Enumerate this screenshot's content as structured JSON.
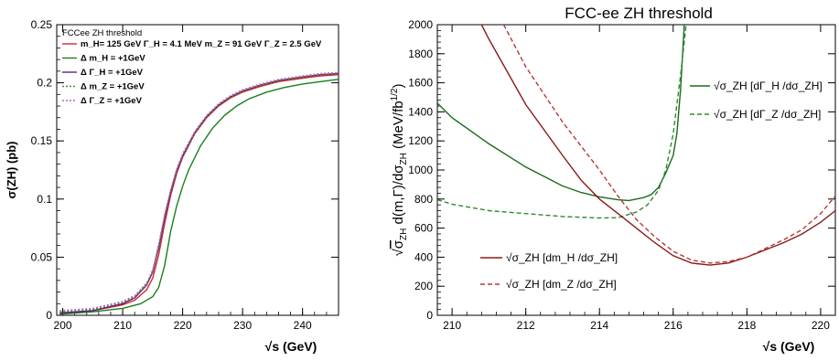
{
  "chart_data": [
    {
      "type": "line",
      "title": "",
      "legend_title": "FCCee ZH threshold",
      "xlabel": "√s (GeV)",
      "ylabel": "σ(ZH) (pb)",
      "xlim": [
        199,
        246
      ],
      "ylim": [
        0,
        0.25
      ],
      "x_ticks": [
        "200",
        "210",
        "220",
        "230",
        "240"
      ],
      "y_ticks": [
        "0",
        "0.05",
        "0.1",
        "0.15",
        "0.2",
        "0.25"
      ],
      "legend_position": "top-left",
      "series": [
        {
          "name": "m_H= 125 GeV Γ_H = 4.1 MeV m_Z = 91 GeV Γ_Z = 2.5 GeV",
          "color": "#d62728",
          "dash": "solid",
          "x": [
            199.5,
            205,
            210,
            212,
            214,
            215,
            216,
            217,
            218,
            219,
            220,
            222,
            224,
            226,
            228,
            230,
            233,
            236,
            240,
            243,
            246
          ],
          "y": [
            0.002,
            0.004,
            0.009,
            0.013,
            0.022,
            0.032,
            0.052,
            0.079,
            0.103,
            0.122,
            0.136,
            0.156,
            0.17,
            0.18,
            0.187,
            0.192,
            0.197,
            0.201,
            0.204,
            0.206,
            0.207
          ]
        },
        {
          "name": "Δ m_H = +1GeV",
          "color": "#1a7f1a",
          "dash": "solid",
          "x": [
            199.5,
            205,
            210,
            213,
            215,
            216,
            217,
            218,
            219,
            220,
            221,
            223,
            225,
            227,
            229,
            231,
            234,
            237,
            240,
            243,
            246
          ],
          "y": [
            0.001,
            0.003,
            0.006,
            0.01,
            0.016,
            0.024,
            0.043,
            0.072,
            0.094,
            0.111,
            0.125,
            0.146,
            0.161,
            0.172,
            0.18,
            0.186,
            0.192,
            0.196,
            0.199,
            0.201,
            0.203
          ]
        },
        {
          "name": "Δ Γ_H = +1GeV",
          "color": "#6a1b8a",
          "dash": "solid",
          "x": [
            199.5,
            205,
            210,
            212,
            214,
            215,
            216,
            217,
            218,
            219,
            220,
            222,
            224,
            226,
            228,
            230,
            233,
            236,
            240,
            243,
            246
          ],
          "y": [
            0.002,
            0.004,
            0.01,
            0.015,
            0.026,
            0.037,
            0.058,
            0.084,
            0.106,
            0.124,
            0.137,
            0.157,
            0.171,
            0.181,
            0.188,
            0.193,
            0.198,
            0.202,
            0.205,
            0.207,
            0.208
          ]
        },
        {
          "name": "Δ m_Z = +1GeV",
          "color": "#2ca02c",
          "dash": "dotted",
          "x": [
            199.5,
            205,
            210,
            212,
            214,
            215,
            216,
            217,
            218,
            219,
            220,
            222,
            224,
            226,
            228,
            230,
            233,
            236,
            240,
            243,
            246
          ],
          "y": [
            0.003,
            0.005,
            0.011,
            0.016,
            0.027,
            0.038,
            0.06,
            0.086,
            0.107,
            0.125,
            0.138,
            0.157,
            0.171,
            0.181,
            0.188,
            0.193,
            0.198,
            0.202,
            0.205,
            0.207,
            0.208
          ]
        },
        {
          "name": "Δ Γ_Z = +1GeV",
          "color": "#c060d0",
          "dash": "dotted",
          "x": [
            199.5,
            205,
            210,
            212,
            214,
            215,
            216,
            217,
            218,
            219,
            220,
            222,
            224,
            226,
            228,
            230,
            233,
            236,
            240,
            243,
            246
          ],
          "y": [
            0.004,
            0.006,
            0.012,
            0.017,
            0.028,
            0.039,
            0.061,
            0.087,
            0.108,
            0.126,
            0.139,
            0.158,
            0.172,
            0.182,
            0.189,
            0.194,
            0.199,
            0.203,
            0.206,
            0.208,
            0.209
          ]
        }
      ]
    },
    {
      "type": "line",
      "title": "FCC-ee ZH threshold",
      "xlabel": "√s (GeV)",
      "ylabel": "√σ_ZH d(m,Γ)/dσ_ZH (MeV/fb^1/2)",
      "xlim": [
        209.6,
        220.4
      ],
      "ylim": [
        0,
        2000
      ],
      "x_ticks": [
        "210",
        "212",
        "214",
        "216",
        "218",
        "220"
      ],
      "y_ticks": [
        "0",
        "200",
        "400",
        "600",
        "800",
        "1000",
        "1200",
        "1400",
        "1600",
        "1800",
        "2000"
      ],
      "series": [
        {
          "name": "√σ_ZH [dΓ_H /dσ_ZH]",
          "color": "#1a6b1a",
          "dash": "solid",
          "legend_position": "upper-right",
          "x": [
            209.6,
            210,
            211,
            212,
            213,
            213.5,
            214,
            214.5,
            214.8,
            215,
            215.2,
            215.4,
            215.6,
            215.8,
            216,
            216.1,
            216.2,
            216.3
          ],
          "y": [
            1460,
            1360,
            1180,
            1020,
            890,
            845,
            815,
            795,
            790,
            800,
            810,
            830,
            880,
            980,
            1100,
            1250,
            1550,
            2000
          ]
        },
        {
          "name": "√σ_ZH [dΓ_Z /dσ_ZH]",
          "color": "#2e8b2e",
          "dash": "dashed",
          "legend_position": "upper-right",
          "x": [
            209.6,
            210,
            211,
            212,
            213,
            214,
            214.5,
            215,
            215.3,
            215.6,
            215.8,
            216,
            216.2,
            216.35
          ],
          "y": [
            795,
            765,
            720,
            700,
            680,
            670,
            672,
            710,
            760,
            860,
            1000,
            1250,
            1650,
            2000
          ]
        },
        {
          "name": "√σ_ZH [dm_H /dσ_ZH]",
          "color": "#8b1a1a",
          "dash": "solid",
          "legend_position": "lower-center",
          "x": [
            210.8,
            211,
            212,
            213,
            213.5,
            214,
            214.5,
            215,
            215.5,
            216,
            216.5,
            217,
            217.5,
            218,
            218.5,
            219,
            219.5,
            220,
            220.4
          ],
          "y": [
            2000,
            1900,
            1450,
            1100,
            930,
            800,
            700,
            600,
            500,
            410,
            360,
            345,
            360,
            400,
            450,
            500,
            560,
            640,
            720
          ]
        },
        {
          "name": "√σ_ZH [dm_Z /dσ_ZH]",
          "color": "#b23a3a",
          "dash": "dashed",
          "legend_position": "lower-center",
          "x": [
            211.4,
            212,
            213,
            214,
            214.5,
            215,
            215.5,
            216,
            216.5,
            217,
            217.5,
            218,
            218.5,
            219,
            219.5,
            220,
            220.4
          ],
          "y": [
            2000,
            1710,
            1330,
            1000,
            820,
            660,
            540,
            440,
            380,
            360,
            370,
            400,
            460,
            520,
            590,
            700,
            820
          ]
        }
      ]
    }
  ]
}
